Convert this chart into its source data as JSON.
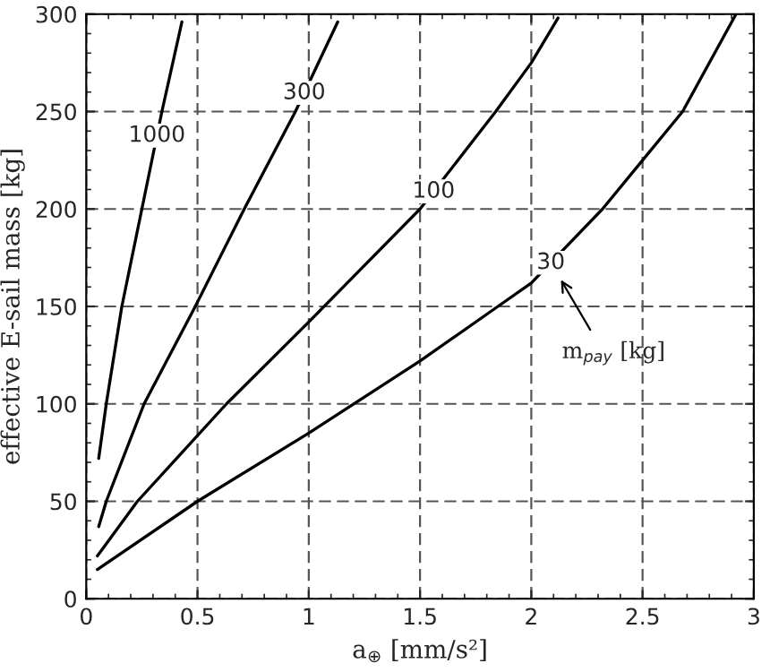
{
  "chart_data": {
    "type": "line",
    "xlabel": "a$_{⊕}$ [mm/s²]",
    "ylabel": "effective E-sail mass [kg]",
    "series": [
      {
        "name": "1000",
        "color": "#000000",
        "x": [
          0.056,
          0.09,
          0.16,
          0.25,
          0.34,
          0.43
        ],
        "values": [
          72,
          100,
          150,
          200,
          250,
          296
        ]
      },
      {
        "name": "300",
        "color": "#000000",
        "x": [
          0.056,
          0.09,
          0.26,
          0.49,
          0.71,
          0.94,
          1.13
        ],
        "values": [
          37,
          50,
          100,
          150,
          200,
          250,
          296
        ]
      },
      {
        "name": "100",
        "color": "#000000",
        "x": [
          0.05,
          0.23,
          0.63,
          1.0,
          1.5,
          1.84,
          2.0,
          2.12
        ],
        "values": [
          22,
          50,
          100,
          142,
          200,
          250,
          275,
          298
        ]
      },
      {
        "name": "30",
        "color": "#000000",
        "x": [
          0.05,
          0.5,
          1.0,
          1.5,
          1.85,
          2.0,
          2.32,
          2.5,
          2.68,
          2.92
        ],
        "values": [
          15,
          50,
          85,
          122,
          150,
          162,
          200,
          225,
          250,
          300
        ]
      }
    ],
    "annotations": [
      "m$_{pay}$ [kg]"
    ],
    "xlim": [
      0,
      3
    ],
    "ylim": [
      0,
      300
    ],
    "xticks": [
      0,
      0.5,
      1,
      1.5,
      2,
      2.5,
      3
    ],
    "yticks": [
      0,
      50,
      100,
      150,
      200,
      250,
      300
    ],
    "grid": true,
    "line_style": "solid",
    "marker": "none"
  }
}
